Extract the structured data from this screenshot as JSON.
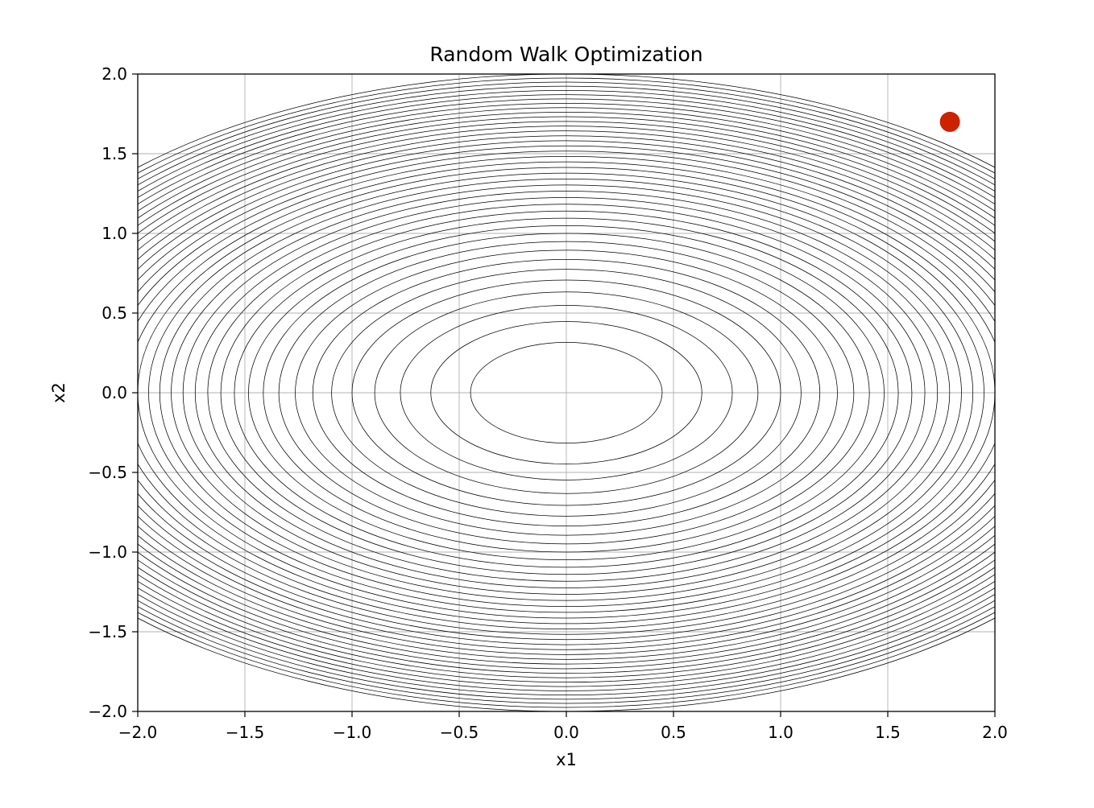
{
  "chart_data": {
    "type": "contour",
    "title": "Random Walk Optimization",
    "xlabel": "x1",
    "ylabel": "x2",
    "xlim": [
      -2.0,
      2.0
    ],
    "ylim": [
      -2.0,
      2.0
    ],
    "xticks": [
      -2.0,
      -1.5,
      -1.0,
      -0.5,
      0.0,
      0.5,
      1.0,
      1.5,
      2.0
    ],
    "yticks": [
      -2.0,
      -1.5,
      -1.0,
      -0.5,
      0.0,
      0.5,
      1.0,
      1.5,
      2.0
    ],
    "xtick_labels": [
      "−2.0",
      "−1.5",
      "−1.0",
      "−0.5",
      "0.0",
      "0.5",
      "1.0",
      "1.5",
      "2.0"
    ],
    "ytick_labels": [
      "−2.0",
      "−1.5",
      "−1.0",
      "−0.5",
      "0.0",
      "0.5",
      "1.0",
      "1.5",
      "2.0"
    ],
    "grid": true,
    "contour": {
      "function": "x1^2 + 2*x2^2",
      "level_start": 0.2,
      "level_step": 0.2,
      "level_count": 40,
      "color": "#000000"
    },
    "points": [
      {
        "x": 1.79,
        "y": 1.7,
        "color": "#cc2200"
      }
    ]
  }
}
